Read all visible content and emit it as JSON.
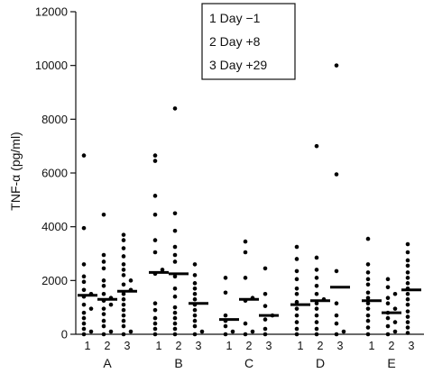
{
  "chart_data": {
    "type": "scatter",
    "title": "",
    "xlabel": "",
    "ylabel": "TNF-α (pg/ml)",
    "ylim": [
      0,
      12000
    ],
    "yticks": [
      "0",
      "2000",
      "4000",
      "6000",
      "8000",
      "10000",
      "12000"
    ],
    "grid": false,
    "legend": {
      "placement": "top-center",
      "entries": [
        "1 Day −1",
        "2 Day +8",
        "3 Day +29"
      ]
    },
    "time_labels": [
      "1",
      "2",
      "3"
    ],
    "groups": [
      {
        "label": "A",
        "timepoints": [
          {
            "time": "1",
            "median": 1450,
            "values": [
              6650,
              3950,
              2600,
              2150,
              1950,
              1650,
              1500,
              1400,
              1100,
              950,
              800,
              600,
              400,
              200,
              100,
              0
            ]
          },
          {
            "time": "2",
            "median": 1300,
            "values": [
              4450,
              2950,
              2700,
              2450,
              2000,
              1800,
              1500,
              1350,
              1250,
              1100,
              950,
              750,
              500,
              300,
              100,
              0
            ]
          },
          {
            "time": "3",
            "median": 1600,
            "values": [
              3700,
              3500,
              3200,
              2900,
              2600,
              2400,
              2200,
              2000,
              1850,
              1650,
              1500,
              1300,
              1100,
              900,
              700,
              500,
              300,
              100,
              0
            ]
          }
        ]
      },
      {
        "label": "B",
        "timepoints": [
          {
            "time": "1",
            "median": 2300,
            "values": [
              6650,
              6450,
              5150,
              4450,
              3500,
              3050,
              2400,
              2250,
              1150,
              900,
              600,
              400,
              200,
              0
            ]
          },
          {
            "time": "2",
            "median": 2250,
            "values": [
              8400,
              4500,
              3850,
              3250,
              2950,
              2700,
              2150,
              1700,
              1400,
              1000,
              800,
              600,
              400,
              200,
              0
            ]
          },
          {
            "time": "3",
            "median": 1150,
            "values": [
              2600,
              2200,
              1900,
              1700,
              1500,
              1300,
              1100,
              900,
              700,
              500,
              300,
              100,
              0
            ]
          }
        ]
      },
      {
        "label": "C",
        "timepoints": [
          {
            "time": "1",
            "median": 550,
            "values": [
              2100,
              1550,
              700,
              500,
              300,
              100,
              0
            ]
          },
          {
            "time": "2",
            "median": 1300,
            "values": [
              3450,
              3050,
              2100,
              1350,
              1250,
              400,
              100,
              0
            ]
          },
          {
            "time": "3",
            "median": 700,
            "values": [
              2450,
              1500,
              1050,
              700,
              550,
              200,
              0
            ]
          }
        ]
      },
      {
        "label": "D",
        "timepoints": [
          {
            "time": "1",
            "median": 1100,
            "values": [
              3250,
              2800,
              2350,
              2050,
              1700,
              1500,
              1200,
              950,
              700,
              450,
              200,
              0
            ]
          },
          {
            "time": "2",
            "median": 1250,
            "values": [
              7000,
              2850,
              2400,
              2100,
              1800,
              1500,
              1300,
              1150,
              950,
              700,
              450,
              200,
              0
            ]
          },
          {
            "time": "3",
            "median": 1750,
            "values": [
              10000,
              5950,
              2350,
              1150,
              700,
              400,
              100,
              0
            ]
          }
        ]
      },
      {
        "label": "E",
        "timepoints": [
          {
            "time": "1",
            "median": 1250,
            "values": [
              3550,
              2600,
              2300,
              2050,
              1850,
              1550,
              1350,
              1150,
              950,
              700,
              500,
              250,
              0
            ]
          },
          {
            "time": "2",
            "median": 800,
            "values": [
              2050,
              1750,
              1500,
              1350,
              1150,
              950,
              800,
              600,
              450,
              300,
              100,
              0
            ]
          },
          {
            "time": "3",
            "median": 1650,
            "values": [
              3350,
              3050,
              2750,
              2550,
              2300,
              2100,
              1900,
              1700,
              1500,
              1300,
              1100,
              850,
              650,
              450,
              250,
              50
            ]
          }
        ]
      }
    ]
  }
}
